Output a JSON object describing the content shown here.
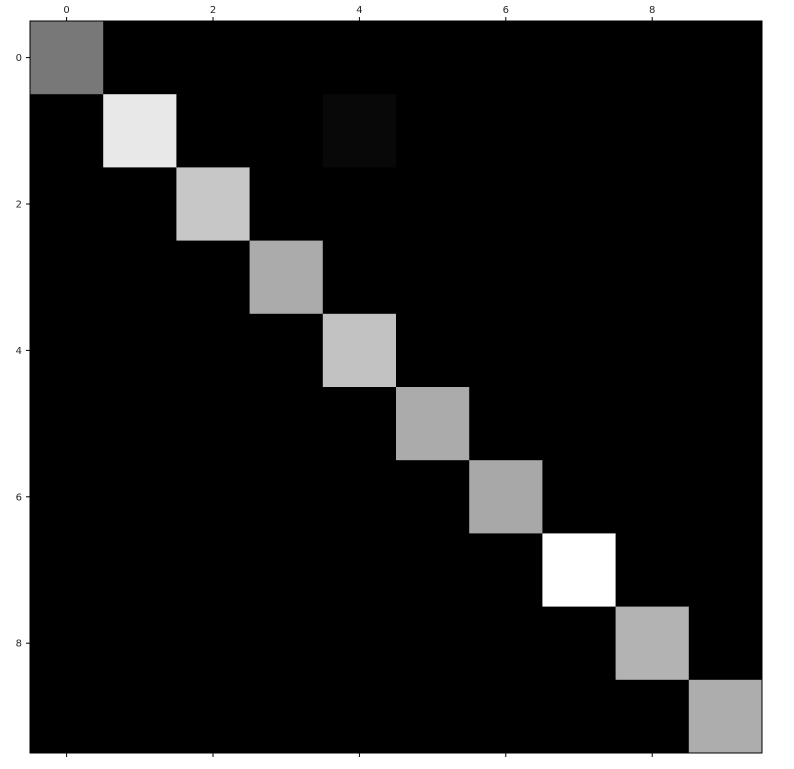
{
  "chart_data": {
    "type": "heatmap",
    "title": "",
    "xlabel": "",
    "ylabel": "",
    "colormap": "gray",
    "x_ticks": [
      "0",
      "2",
      "4",
      "6",
      "8"
    ],
    "y_ticks": [
      "0",
      "2",
      "4",
      "6",
      "8"
    ],
    "x_tick_position": "top",
    "grid": false,
    "rows": 10,
    "cols": 10,
    "values": [
      [
        0.47,
        0,
        0,
        0,
        0,
        0,
        0,
        0,
        0,
        0
      ],
      [
        0,
        0.91,
        0,
        0,
        0.03,
        0,
        0,
        0,
        0,
        0
      ],
      [
        0,
        0,
        0.78,
        0,
        0,
        0,
        0,
        0,
        0,
        0
      ],
      [
        0,
        0,
        0,
        0.67,
        0,
        0,
        0,
        0,
        0,
        0
      ],
      [
        0,
        0,
        0,
        0,
        0.76,
        0,
        0,
        0,
        0,
        0
      ],
      [
        0,
        0,
        0,
        0,
        0,
        0.67,
        0,
        0,
        0,
        0
      ],
      [
        0,
        0,
        0,
        0,
        0,
        0,
        0.66,
        0,
        0,
        0
      ],
      [
        0,
        0,
        0,
        0,
        0,
        0,
        0,
        1.0,
        0,
        0
      ],
      [
        0,
        0,
        0,
        0,
        0,
        0,
        0,
        0,
        0.7,
        0
      ],
      [
        0,
        0,
        0,
        0,
        0,
        0,
        0,
        0,
        0,
        0.68
      ]
    ]
  }
}
